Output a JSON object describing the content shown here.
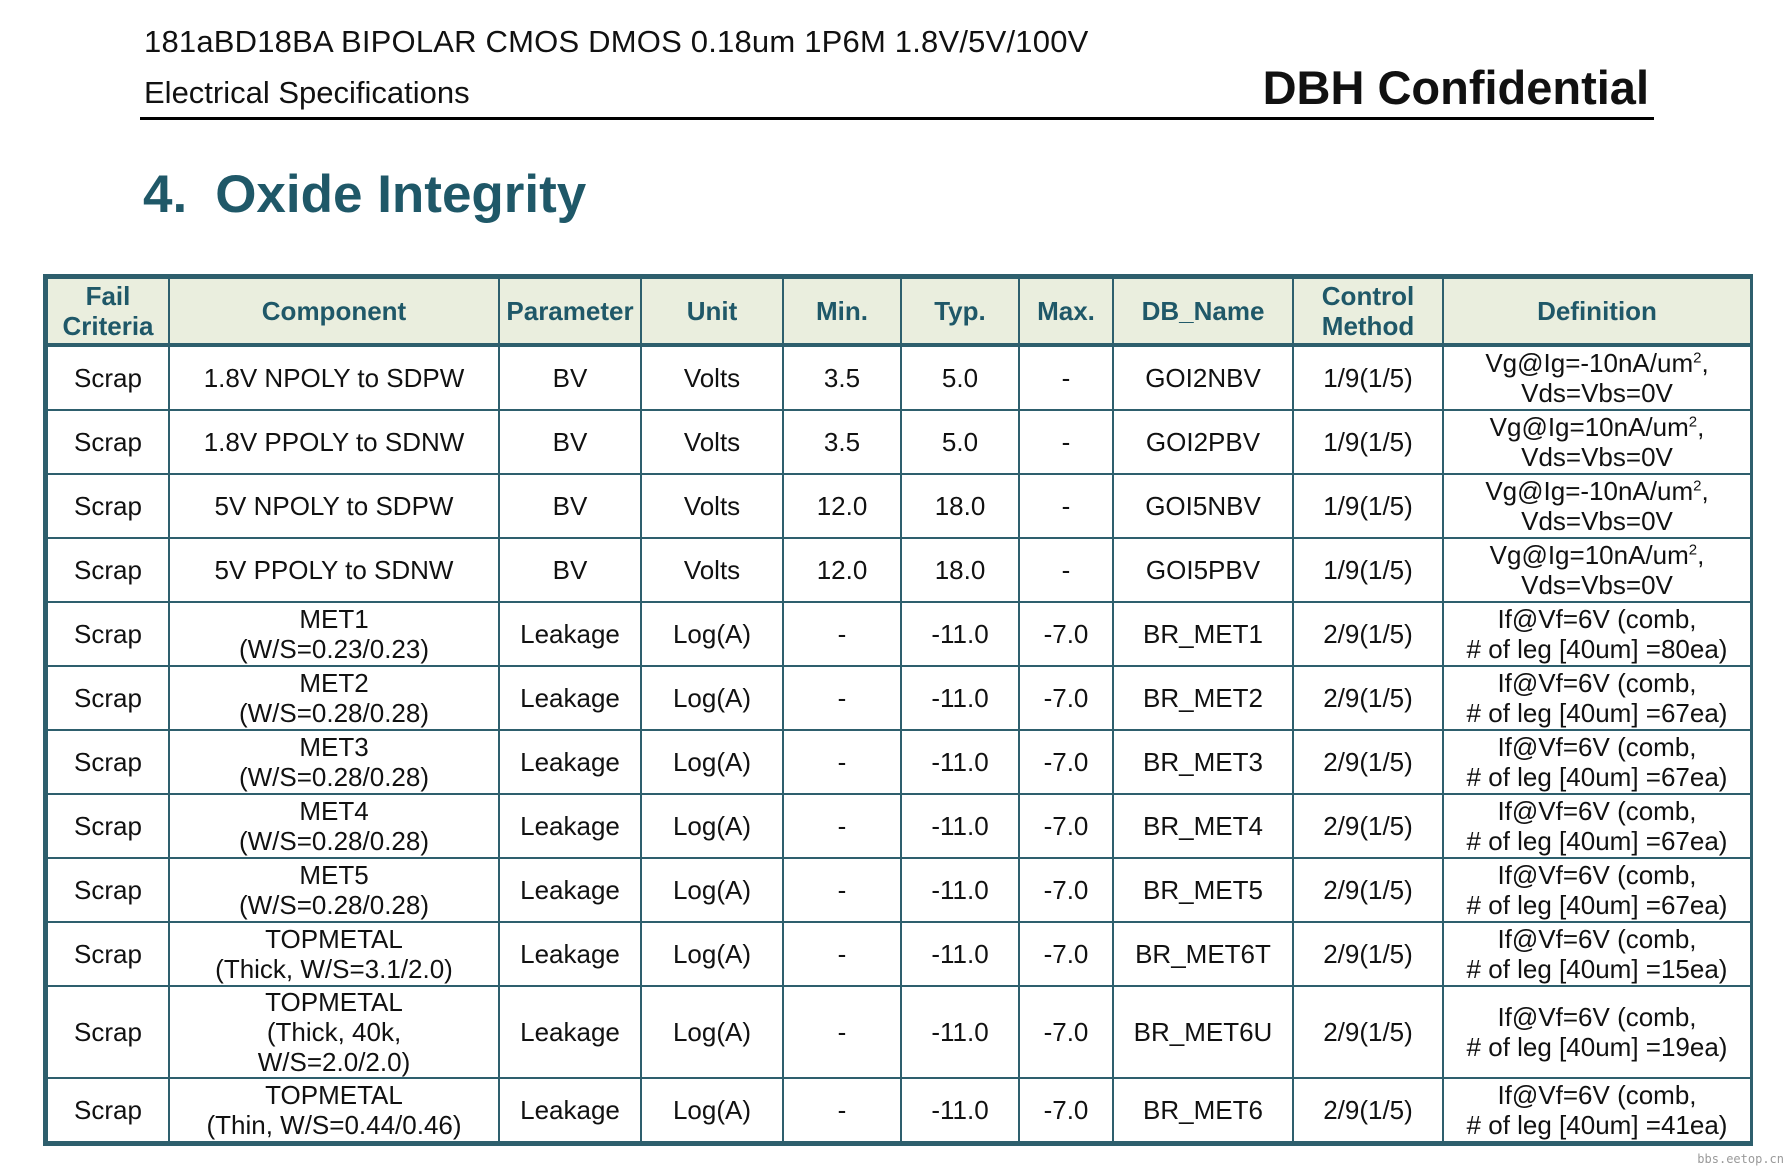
{
  "header": {
    "doc_id": "181aBD18BA BIPOLAR CMOS DMOS 0.18um 1P6M 1.8V/5V/100V",
    "subtitle": "Electrical Specifications",
    "confidential": "DBH Confidential"
  },
  "section": {
    "number": "4.",
    "title": "Oxide Integrity"
  },
  "table": {
    "columns": [
      {
        "key": "fail",
        "lines": [
          "Fail",
          "Criteria"
        ]
      },
      {
        "key": "component",
        "lines": [
          "Component"
        ]
      },
      {
        "key": "parameter",
        "lines": [
          "Parameter"
        ]
      },
      {
        "key": "unit",
        "lines": [
          "Unit"
        ]
      },
      {
        "key": "min",
        "lines": [
          "Min."
        ]
      },
      {
        "key": "typ",
        "lines": [
          "Typ."
        ]
      },
      {
        "key": "max",
        "lines": [
          "Max."
        ]
      },
      {
        "key": "db_name",
        "lines": [
          "DB_Name"
        ]
      },
      {
        "key": "control",
        "lines": [
          "Control",
          "Method"
        ]
      },
      {
        "key": "definition",
        "lines": [
          "Definition"
        ]
      }
    ],
    "rows": [
      {
        "fail": "Scrap",
        "component": [
          "1.8V NPOLY to SDPW"
        ],
        "parameter": "BV",
        "unit": "Volts",
        "min": "3.5",
        "typ": "5.0",
        "max": "-",
        "db_name": "GOI2NBV",
        "control": "1/9(1/5)",
        "definition": [
          "Vg@Ig=-10nA/um",
          "2",
          ",",
          "Vds=Vbs=0V"
        ]
      },
      {
        "fail": "Scrap",
        "component": [
          "1.8V PPOLY to SDNW"
        ],
        "parameter": "BV",
        "unit": "Volts",
        "min": "3.5",
        "typ": "5.0",
        "max": "-",
        "db_name": "GOI2PBV",
        "control": "1/9(1/5)",
        "definition": [
          "Vg@Ig=10nA/um",
          "2",
          ",",
          "Vds=Vbs=0V"
        ]
      },
      {
        "fail": "Scrap",
        "component": [
          "5V NPOLY to SDPW"
        ],
        "parameter": "BV",
        "unit": "Volts",
        "min": "12.0",
        "typ": "18.0",
        "max": "-",
        "db_name": "GOI5NBV",
        "control": "1/9(1/5)",
        "definition": [
          "Vg@Ig=-10nA/um",
          "2",
          ",",
          "Vds=Vbs=0V"
        ]
      },
      {
        "fail": "Scrap",
        "component": [
          "5V PPOLY to SDNW"
        ],
        "parameter": "BV",
        "unit": "Volts",
        "min": "12.0",
        "typ": "18.0",
        "max": "-",
        "db_name": "GOI5PBV",
        "control": "1/9(1/5)",
        "definition": [
          "Vg@Ig=10nA/um",
          "2",
          ",",
          "Vds=Vbs=0V"
        ]
      },
      {
        "fail": "Scrap",
        "component": [
          "MET1",
          "(W/S=0.23/0.23)"
        ],
        "parameter": "Leakage",
        "unit": "Log(A)",
        "min": "-",
        "typ": "-11.0",
        "max": "-7.0",
        "db_name": "BR_MET1",
        "control": "2/9(1/5)",
        "definition": [
          "If@Vf=6V (comb,",
          "# of leg [40um] =80ea)"
        ]
      },
      {
        "fail": "Scrap",
        "component": [
          "MET2",
          "(W/S=0.28/0.28)"
        ],
        "parameter": "Leakage",
        "unit": "Log(A)",
        "min": "-",
        "typ": "-11.0",
        "max": "-7.0",
        "db_name": "BR_MET2",
        "control": "2/9(1/5)",
        "definition": [
          "If@Vf=6V (comb,",
          "# of leg [40um] =67ea)"
        ]
      },
      {
        "fail": "Scrap",
        "component": [
          "MET3",
          "(W/S=0.28/0.28)"
        ],
        "parameter": "Leakage",
        "unit": "Log(A)",
        "min": "-",
        "typ": "-11.0",
        "max": "-7.0",
        "db_name": "BR_MET3",
        "control": "2/9(1/5)",
        "definition": [
          "If@Vf=6V (comb,",
          "# of leg [40um] =67ea)"
        ]
      },
      {
        "fail": "Scrap",
        "component": [
          "MET4",
          "(W/S=0.28/0.28)"
        ],
        "parameter": "Leakage",
        "unit": "Log(A)",
        "min": "-",
        "typ": "-11.0",
        "max": "-7.0",
        "db_name": "BR_MET4",
        "control": "2/9(1/5)",
        "definition": [
          "If@Vf=6V (comb,",
          "# of leg [40um] =67ea)"
        ]
      },
      {
        "fail": "Scrap",
        "component": [
          "MET5",
          "(W/S=0.28/0.28)"
        ],
        "parameter": "Leakage",
        "unit": "Log(A)",
        "min": "-",
        "typ": "-11.0",
        "max": "-7.0",
        "db_name": "BR_MET5",
        "control": "2/9(1/5)",
        "definition": [
          "If@Vf=6V (comb,",
          "# of leg [40um] =67ea)"
        ]
      },
      {
        "fail": "Scrap",
        "component": [
          "TOPMETAL",
          "(Thick, W/S=3.1/2.0)"
        ],
        "parameter": "Leakage",
        "unit": "Log(A)",
        "min": "-",
        "typ": "-11.0",
        "max": "-7.0",
        "db_name": "BR_MET6T",
        "control": "2/9(1/5)",
        "definition": [
          "If@Vf=6V (comb,",
          "# of leg [40um] =15ea)"
        ]
      },
      {
        "fail": "Scrap",
        "component": [
          "TOPMETAL",
          "(Thick, 40k,",
          "W/S=2.0/2.0)"
        ],
        "parameter": "Leakage",
        "unit": "Log(A)",
        "min": "-",
        "typ": "-11.0",
        "max": "-7.0",
        "db_name": "BR_MET6U",
        "control": "2/9(1/5)",
        "definition": [
          "If@Vf=6V (comb,",
          "# of leg [40um] =19ea)"
        ]
      },
      {
        "fail": "Scrap",
        "component": [
          "TOPMETAL",
          "(Thin, W/S=0.44/0.46)"
        ],
        "parameter": "Leakage",
        "unit": "Log(A)",
        "min": "-",
        "typ": "-11.0",
        "max": "-7.0",
        "db_name": "BR_MET6",
        "control": "2/9(1/5)",
        "definition": [
          "If@Vf=6V (comb,",
          "# of leg [40um] =41ea)"
        ]
      }
    ]
  },
  "watermark": "bbs.eetop.cn"
}
